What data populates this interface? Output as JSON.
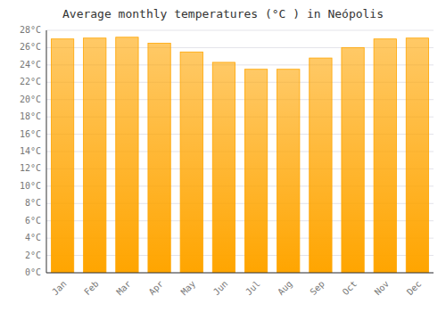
{
  "chart_data": {
    "type": "bar",
    "title": "Average monthly temperatures (°C ) in Neópolis",
    "categories": [
      "Jan",
      "Feb",
      "Mar",
      "Apr",
      "May",
      "Jun",
      "Jul",
      "Aug",
      "Sep",
      "Oct",
      "Nov",
      "Dec"
    ],
    "values": [
      27.0,
      27.1,
      27.2,
      26.5,
      25.5,
      24.3,
      23.5,
      23.5,
      24.8,
      26.0,
      27.0,
      27.1
    ],
    "color": "#FFA500",
    "ylim": [
      0,
      28
    ],
    "yticks": [
      {
        "value": 0,
        "label": "0°C"
      },
      {
        "value": 2,
        "label": "2°C"
      },
      {
        "value": 4,
        "label": "4°C"
      },
      {
        "value": 6,
        "label": "6°C"
      },
      {
        "value": 8,
        "label": "8°C"
      },
      {
        "value": 10,
        "label": "10°C"
      },
      {
        "value": 12,
        "label": "12°C"
      },
      {
        "value": 14,
        "label": "14°C"
      },
      {
        "value": 16,
        "label": "16°C"
      },
      {
        "value": 18,
        "label": "18°C"
      },
      {
        "value": 20,
        "label": "20°C"
      },
      {
        "value": 22,
        "label": "22°C"
      },
      {
        "value": 24,
        "label": "24°C"
      },
      {
        "value": 26,
        "label": "26°C"
      },
      {
        "value": 28,
        "label": "28°C"
      }
    ],
    "grid": true
  }
}
